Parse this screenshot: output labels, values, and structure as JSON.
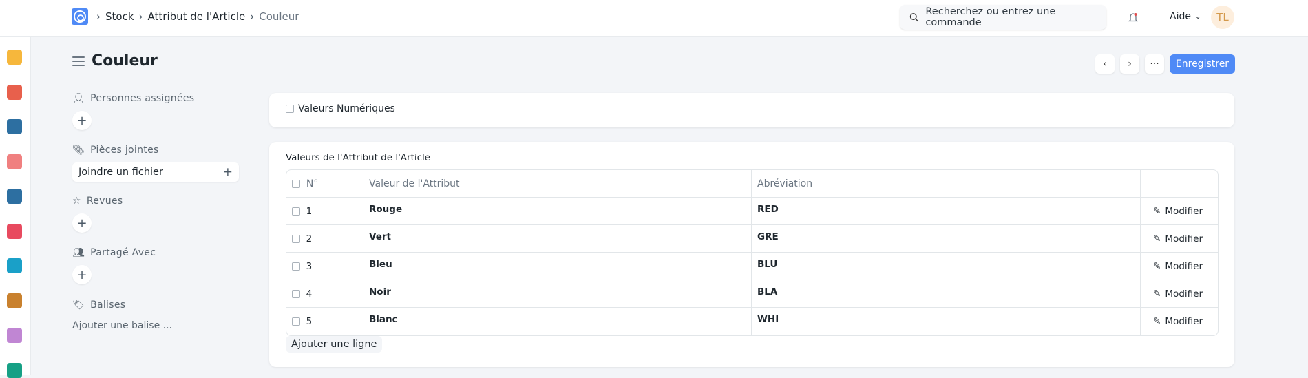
{
  "breadcrumb": [
    "Stock",
    "Attribut de l'Article",
    "Couleur"
  ],
  "search": {
    "placeholder": "Recherchez ou entrez une commande"
  },
  "help_label": "Aide",
  "avatar_initials": "TL",
  "page_title": "Couleur",
  "save_label": "Enregistrer",
  "sidebar_icons": [
    "#f6b73c",
    "#e8604c",
    "#2d6fa1",
    "#f08080",
    "#2d6fa1",
    "#e84a5f",
    "#1aa0c8",
    "#c9812e",
    "#c086d3",
    "#16a085"
  ],
  "side": {
    "assigned": "Personnes assignées",
    "attachments": "Pièces jointes",
    "attach_file": "Joindre un fichier",
    "reviews": "Revues",
    "shared": "Partagé Avec",
    "tags": "Balises",
    "add_tag": "Ajouter une balise ..."
  },
  "numeric_label": "Valeurs Numériques",
  "numeric_checked": false,
  "table": {
    "title": "Valeurs de l'Attribut de l'Article",
    "headers": [
      "N°",
      "Valeur de l'Attribut",
      "Abréviation"
    ],
    "edit_label": "Modifier",
    "rows": [
      {
        "no": "1",
        "value": "Rouge",
        "abbr": "RED"
      },
      {
        "no": "2",
        "value": "Vert",
        "abbr": "GRE"
      },
      {
        "no": "3",
        "value": "Bleu",
        "abbr": "BLU"
      },
      {
        "no": "4",
        "value": "Noir",
        "abbr": "BLA"
      },
      {
        "no": "5",
        "value": "Blanc",
        "abbr": "WHI"
      }
    ],
    "add_row": "Ajouter une ligne"
  },
  "accent": "#4f8af6"
}
